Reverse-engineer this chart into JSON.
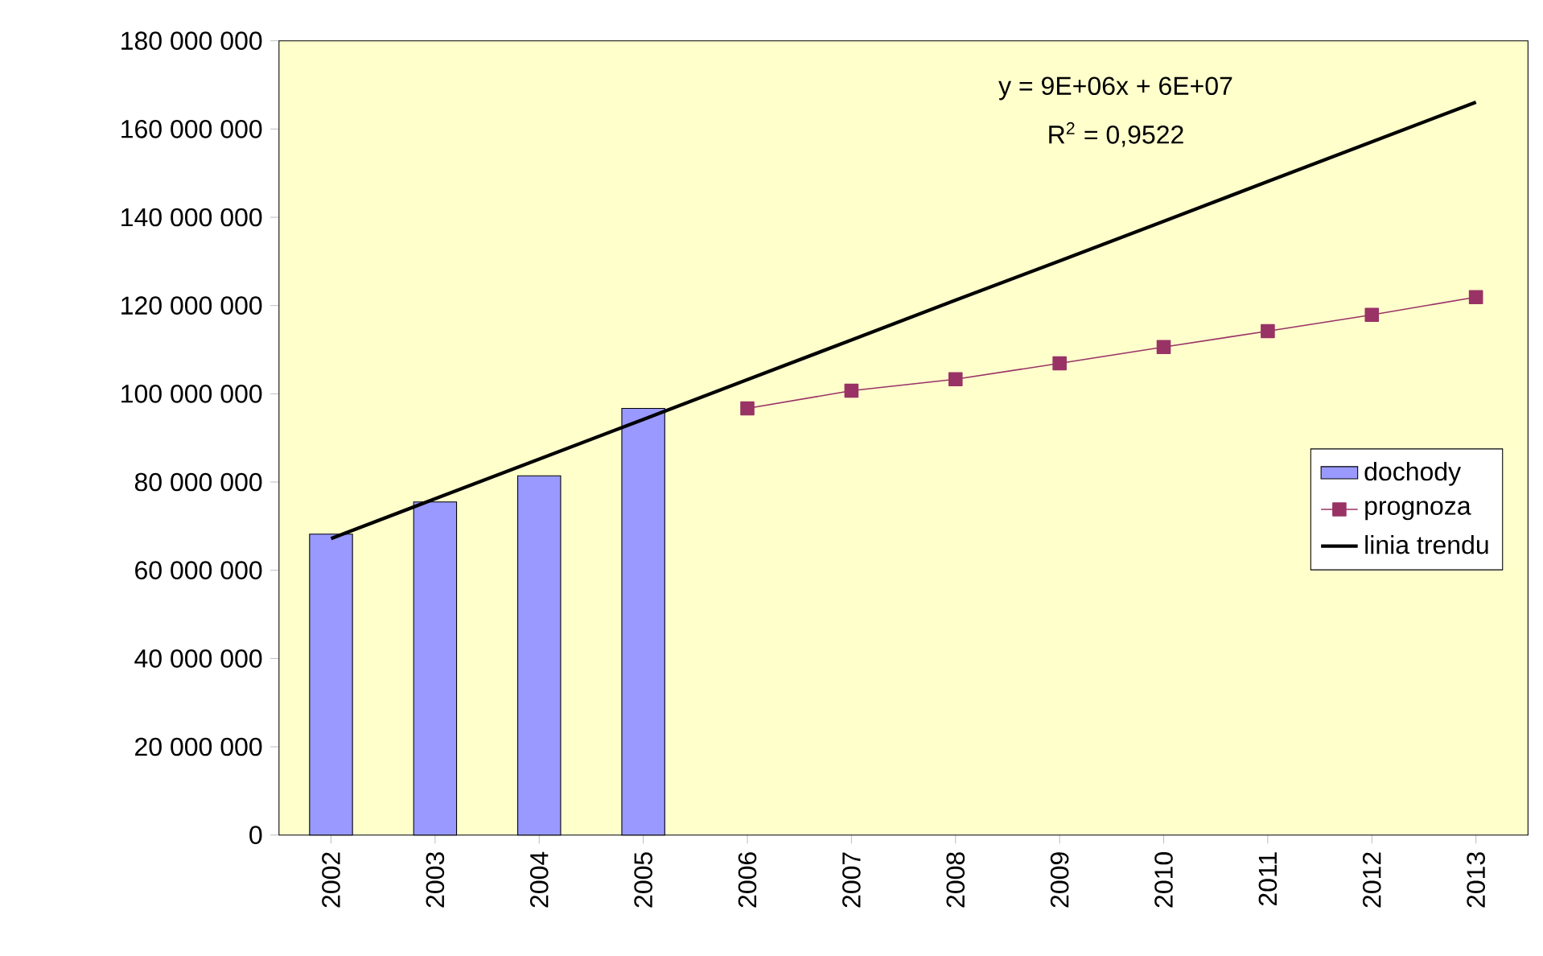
{
  "chart_data": {
    "type": "bar",
    "categories": [
      "2002",
      "2003",
      "2004",
      "2005",
      "2006",
      "2007",
      "2008",
      "2009",
      "2010",
      "2011",
      "2012",
      "2013"
    ],
    "ylim": [
      0,
      180000000
    ],
    "yticks": [
      {
        "value": 0,
        "label": "0"
      },
      {
        "value": 20000000,
        "label": "20 000 000"
      },
      {
        "value": 40000000,
        "label": "40 000 000"
      },
      {
        "value": 60000000,
        "label": "60 000 000"
      },
      {
        "value": 80000000,
        "label": "80 000 000"
      },
      {
        "value": 100000000,
        "label": "100 000 000"
      },
      {
        "value": 120000000,
        "label": "120 000 000"
      },
      {
        "value": 140000000,
        "label": "140 000 000"
      },
      {
        "value": 160000000,
        "label": "160 000 000"
      },
      {
        "value": 180000000,
        "label": "180 000 000"
      }
    ],
    "legend": "right",
    "grid": false,
    "annotations": [
      "y = 9E+06x + 6E+07",
      "R$^{2}$ = 0,9522"
    ],
    "series": [
      {
        "name": "dochody",
        "color": "#9999ff",
        "values": [
          68200000,
          75500000,
          81400000,
          96700000,
          null,
          null,
          null,
          null,
          null,
          null,
          null,
          null
        ]
      },
      {
        "name": "prognoza",
        "type": "line",
        "color": "#993366",
        "marker": "square",
        "values": [
          null,
          null,
          null,
          null,
          96700000,
          100700000,
          103300000,
          106900000,
          110600000,
          114200000,
          117900000,
          121900000
        ]
      },
      {
        "name": "linia trendu",
        "type": "line",
        "color": "#000000",
        "values": [
          67200000,
          76200000,
          85200000,
          94200000,
          103200000,
          112200000,
          121200000,
          130100000,
          139100000,
          148100000,
          157100000,
          166100000
        ]
      }
    ]
  }
}
